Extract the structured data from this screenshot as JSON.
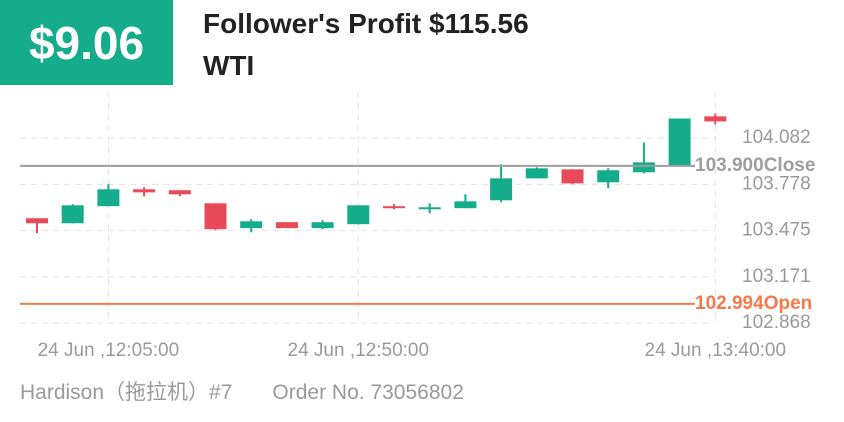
{
  "header": {
    "badge": "$9.06",
    "title": "Follower's Profit $115.56",
    "subtitle": "WTI"
  },
  "chart_data": {
    "type": "candlestick",
    "categories": [
      null,
      null,
      "24 Jun ,12:05:00",
      null,
      null,
      null,
      null,
      null,
      null,
      "24 Jun ,12:50:00",
      null,
      null,
      null,
      null,
      null,
      null,
      null,
      null,
      null,
      "24 Jun ,13:40:00"
    ],
    "open": [
      103.556,
      103.523,
      103.635,
      103.746,
      103.74,
      103.654,
      103.491,
      103.53,
      103.491,
      103.517,
      103.635,
      103.615,
      103.622,
      103.674,
      103.818,
      103.877,
      103.792,
      103.858,
      103.903,
      104.225
    ],
    "high": [
      103.556,
      103.648,
      103.779,
      103.759,
      103.74,
      103.654,
      103.55,
      103.53,
      103.543,
      103.641,
      103.648,
      103.654,
      103.713,
      103.91,
      103.89,
      103.877,
      103.884,
      104.054,
      104.211,
      104.244
    ],
    "low": [
      103.458,
      103.523,
      103.635,
      103.7,
      103.7,
      103.477,
      103.464,
      103.491,
      103.484,
      103.517,
      103.615,
      103.589,
      103.622,
      103.661,
      103.818,
      103.779,
      103.753,
      103.851,
      103.903,
      104.172
    ],
    "close": [
      103.523,
      103.641,
      103.746,
      103.726,
      103.713,
      103.484,
      103.536,
      103.491,
      103.53,
      103.641,
      103.622,
      103.628,
      103.667,
      103.818,
      103.884,
      103.785,
      103.871,
      103.923,
      104.211,
      104.192
    ],
    "up_color": "#14ac8b",
    "down_color": "#e84a5a",
    "ylim": [
      102.868,
      104.385
    ],
    "yticks": [
      102.868,
      103.171,
      103.475,
      103.778,
      104.082
    ],
    "grid": true,
    "reference_lines": [
      {
        "name": "Close",
        "value": 103.9,
        "value_label": "103.900",
        "color": "#9e9e9e"
      },
      {
        "name": "Open",
        "value": 102.994,
        "value_label": "102.994",
        "color": "#f47a4a"
      }
    ]
  },
  "footer": {
    "trader": "Hardison（拖拉机）#7",
    "order": "Order No. 73056802"
  }
}
